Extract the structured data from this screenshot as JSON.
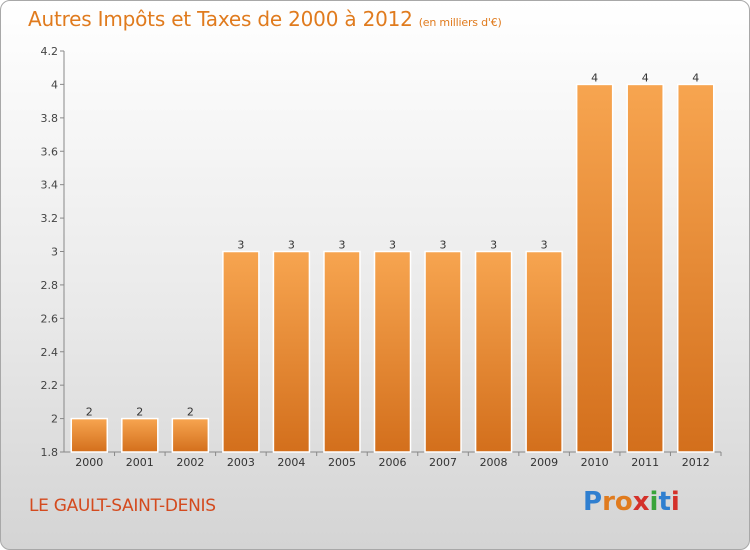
{
  "title": "Autres Impôts et Taxes de 2000 à 2012",
  "subtitle": "(en milliers d'€)",
  "commune": "LE GAULT-SAINT-DENIS",
  "logo": {
    "letters": [
      "P",
      "r",
      "o",
      "x",
      "i",
      "t",
      "i"
    ],
    "colors": [
      "#2f7fd0",
      "#e07b1e",
      "#e07b1e",
      "#d4312a",
      "#3aa43a",
      "#2f7fd0",
      "#d4312a"
    ]
  },
  "colors": {
    "bar_top": "#f7a550",
    "bar_bottom": "#d36f1c",
    "title": "#e07b1e",
    "commune": "#d44a1e"
  },
  "chart_data": {
    "type": "bar",
    "categories": [
      "2000",
      "2001",
      "2002",
      "2003",
      "2004",
      "2005",
      "2006",
      "2007",
      "2008",
      "2009",
      "2010",
      "2011",
      "2012"
    ],
    "values": [
      2,
      2,
      2,
      3,
      3,
      3,
      3,
      3,
      3,
      3,
      4,
      4,
      4
    ],
    "ylim": [
      1.8,
      4.2
    ],
    "yticks": [
      "1.8",
      "2",
      "2.2",
      "2.4",
      "2.6",
      "2.8",
      "3",
      "3.2",
      "3.4",
      "3.6",
      "3.8",
      "4",
      "4.2"
    ],
    "grid": false,
    "legend": "none"
  }
}
